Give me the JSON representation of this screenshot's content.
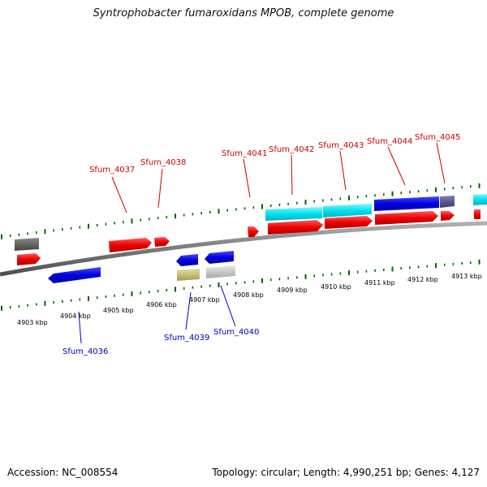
{
  "title": "Syntrophobacter fumaroxidans MPOB, complete genome",
  "footer": {
    "accession": "Accession: NC_008554",
    "topology": "Topology: circular; Length: 4,990,251 bp; Genes: 4,127"
  },
  "colors": {
    "forward_gene": "#ff0000",
    "reverse_gene": "#0000ee",
    "rna_feature": "#00e5ee",
    "backbone": "#808080",
    "ticks": "#006400",
    "forward_label": "#cc0000",
    "reverse_label": "#0000bb"
  },
  "scale_labels": [
    "4903 kbp",
    "4904 kbp",
    "4905 kbp",
    "4906 kbp",
    "4907 kbp",
    "4908 kbp",
    "4909 kbp",
    "4910 kbp",
    "4911 kbp",
    "4912 kbp",
    "4913 kbp"
  ],
  "gene_labels": {
    "forward": [
      "Sfum_4037",
      "Sfum_4038",
      "Sfum_4041",
      "Sfum_4042",
      "Sfum_4043",
      "Sfum_4044",
      "Sfum_4045"
    ],
    "reverse": [
      "Sfum_4036",
      "Sfum_4039",
      "Sfum_4040"
    ]
  }
}
